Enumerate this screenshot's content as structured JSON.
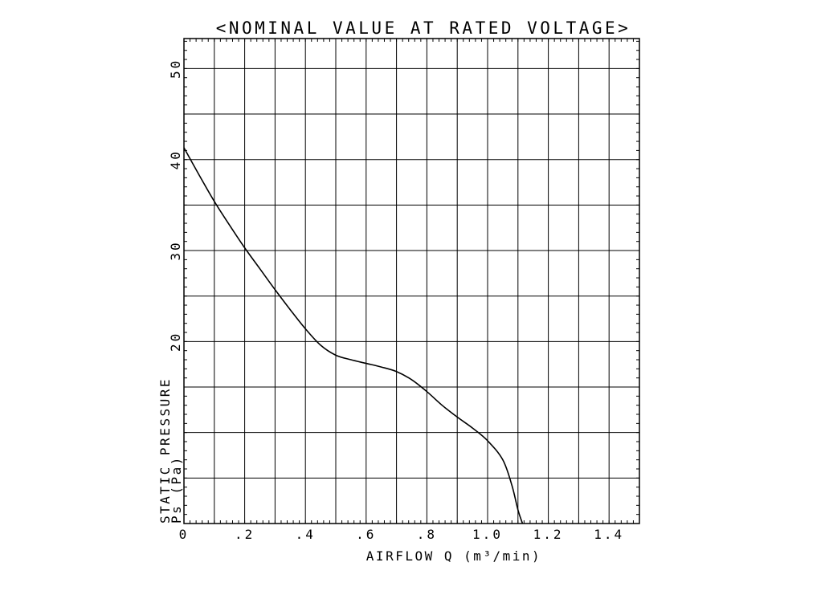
{
  "chart_data": {
    "type": "line",
    "title": "<NOMINAL VALUE AT RATED VOLTAGE>",
    "xlabel": "AIRFLOW Q (m³/min)",
    "ylabel_line1": "STATIC PRESSURE",
    "ylabel_line2": "Ps (Pa)",
    "xlim": [
      0,
      1.5
    ],
    "ylim": [
      0,
      53.3
    ],
    "x_ticks": [
      {
        "value": 0,
        "label": "0"
      },
      {
        "value": 0.2,
        "label": ".2"
      },
      {
        "value": 0.4,
        "label": ".4"
      },
      {
        "value": 0.6,
        "label": ".6"
      },
      {
        "value": 0.8,
        "label": ".8"
      },
      {
        "value": 1.0,
        "label": "1.0"
      },
      {
        "value": 1.2,
        "label": "1.2"
      },
      {
        "value": 1.4,
        "label": "1.4"
      }
    ],
    "y_ticks": [
      {
        "value": 20,
        "label": "20"
      },
      {
        "value": 30,
        "label": "30"
      },
      {
        "value": 40,
        "label": "40"
      },
      {
        "value": 50,
        "label": "50"
      }
    ],
    "grid": true,
    "series": [
      {
        "values": [
          {
            "x": 0.0,
            "y": 41.3
          },
          {
            "x": 0.05,
            "y": 38.3
          },
          {
            "x": 0.1,
            "y": 35.4
          },
          {
            "x": 0.15,
            "y": 32.8
          },
          {
            "x": 0.2,
            "y": 30.3
          },
          {
            "x": 0.25,
            "y": 28.0
          },
          {
            "x": 0.3,
            "y": 25.7
          },
          {
            "x": 0.35,
            "y": 23.5
          },
          {
            "x": 0.4,
            "y": 21.4
          },
          {
            "x": 0.45,
            "y": 19.6
          },
          {
            "x": 0.5,
            "y": 18.5
          },
          {
            "x": 0.55,
            "y": 18.0
          },
          {
            "x": 0.6,
            "y": 17.6
          },
          {
            "x": 0.65,
            "y": 17.2
          },
          {
            "x": 0.7,
            "y": 16.7
          },
          {
            "x": 0.75,
            "y": 15.8
          },
          {
            "x": 0.8,
            "y": 14.5
          },
          {
            "x": 0.85,
            "y": 13.0
          },
          {
            "x": 0.9,
            "y": 11.7
          },
          {
            "x": 0.95,
            "y": 10.5
          },
          {
            "x": 1.0,
            "y": 9.1
          },
          {
            "x": 1.05,
            "y": 7.0
          },
          {
            "x": 1.08,
            "y": 4.2
          },
          {
            "x": 1.1,
            "y": 1.5
          },
          {
            "x": 1.115,
            "y": 0.0
          }
        ]
      }
    ]
  }
}
